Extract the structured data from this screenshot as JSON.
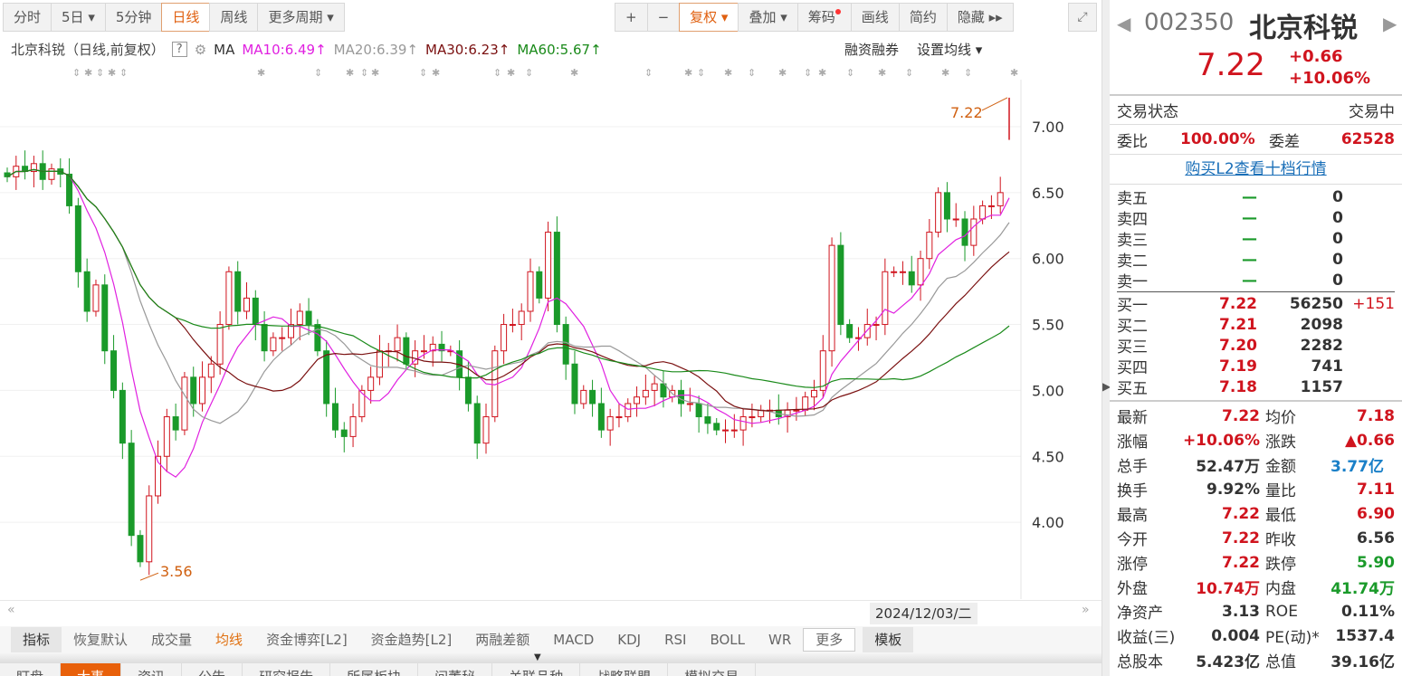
{
  "toolbar": {
    "left": [
      "分时",
      "5日 ▾",
      "5分钟",
      "日线",
      "周线",
      "更多周期 ▾"
    ],
    "active": "日线",
    "right": [
      "+",
      "−",
      "复权 ▾",
      "叠加 ▾",
      "筹码",
      "画线",
      "简约",
      "隐藏 ▸▸"
    ],
    "fullscreen_icon": "expand-icon"
  },
  "ma_header": {
    "title": "北京科锐（日线,前复权）",
    "help": "?",
    "ma": "MA",
    "ma10": "MA10:6.49",
    "ma20": "MA20:6.39",
    "ma30": "MA30:6.23",
    "ma60": "MA60:5.67",
    "arrow": "↑",
    "margin": "融资融券",
    "set_ma": "设置均线 ▾"
  },
  "colors": {
    "up": "#d0141e",
    "down": "#1a9a2a",
    "ma10": "#e020e0",
    "ma20": "#999999",
    "ma30": "#7a1010",
    "ma60": "#1a8a1a",
    "accent": "#e8600a"
  },
  "chart_data": {
    "type": "candlestick",
    "ylim": [
      3.5,
      7.35
    ],
    "yticks": [
      "7.00",
      "6.50",
      "6.00",
      "5.50",
      "5.00",
      "4.50",
      "4.00"
    ],
    "closes": [
      6.62,
      6.7,
      6.66,
      6.72,
      6.6,
      6.68,
      6.64,
      6.4,
      5.9,
      5.6,
      5.8,
      5.3,
      5.0,
      4.6,
      3.9,
      3.7,
      4.2,
      4.5,
      4.8,
      4.7,
      5.1,
      4.9,
      5.1,
      5.2,
      5.5,
      5.9,
      5.6,
      5.7,
      5.5,
      5.3,
      5.4,
      5.4,
      5.5,
      5.6,
      5.5,
      5.3,
      4.9,
      4.7,
      4.65,
      4.8,
      5.0,
      5.1,
      5.3,
      5.3,
      5.4,
      5.2,
      5.3,
      5.3,
      5.35,
      5.3,
      5.3,
      5.1,
      4.9,
      4.6,
      4.8,
      5.3,
      5.5,
      5.5,
      5.6,
      5.9,
      5.7,
      6.2,
      5.5,
      5.2,
      4.9,
      5.0,
      4.9,
      4.7,
      4.8,
      4.8,
      4.9,
      4.95,
      5.0,
      5.05,
      4.95,
      5.0,
      4.9,
      4.9,
      4.8,
      4.75,
      4.7,
      4.7,
      4.7,
      4.8,
      4.8,
      4.85,
      4.85,
      4.8,
      4.85,
      4.85,
      4.95,
      5.0,
      5.3,
      6.1,
      5.5,
      5.4,
      5.4,
      5.5,
      5.5,
      5.9,
      5.9,
      5.9,
      5.8,
      6.0,
      6.2,
      6.5,
      6.3,
      6.3,
      6.1,
      6.3,
      6.4,
      6.4,
      6.5,
      7.22
    ],
    "last": {
      "open": 7.22,
      "high": 7.22,
      "low": 6.9,
      "close": 7.22
    },
    "high_label": "7.22",
    "low_label": "3.56"
  },
  "date": "2024/12/03/二",
  "indicators": [
    "指标",
    "恢复默认",
    "成交量",
    "均线",
    "资金博弈[L2]",
    "资金趋势[L2]",
    "两融差额",
    "MACD",
    "KDJ",
    "RSI",
    "BOLL",
    "WR",
    "更多",
    "模板"
  ],
  "bottom_tabs": [
    "盯盘",
    "大事",
    "资讯",
    "公告",
    "研究报告",
    "所属板块",
    "问董秘",
    "关联品种",
    "战略联盟",
    "模拟交易"
  ],
  "quote": {
    "code": "002350",
    "name": "北京科锐",
    "price": "7.22",
    "change": "+0.66",
    "pct": "+10.06%",
    "status_label": "交易状态",
    "status": "交易中",
    "wb_label": "委比",
    "wb": "100.00%",
    "wc_label": "委差",
    "wc": "62528",
    "l2_link": "购买L2查看十档行情",
    "asks": [
      {
        "l": "卖五",
        "p": "—",
        "v": "0"
      },
      {
        "l": "卖四",
        "p": "—",
        "v": "0"
      },
      {
        "l": "卖三",
        "p": "—",
        "v": "0"
      },
      {
        "l": "卖二",
        "p": "—",
        "v": "0"
      },
      {
        "l": "卖一",
        "p": "—",
        "v": "0"
      }
    ],
    "bids": [
      {
        "l": "买一",
        "p": "7.22",
        "v": "56250",
        "d": "+151"
      },
      {
        "l": "买二",
        "p": "7.21",
        "v": "2098",
        "d": ""
      },
      {
        "l": "买三",
        "p": "7.20",
        "v": "2282",
        "d": ""
      },
      {
        "l": "买四",
        "p": "7.19",
        "v": "741",
        "d": ""
      },
      {
        "l": "买五",
        "p": "7.18",
        "v": "1157",
        "d": ""
      }
    ],
    "stats": [
      [
        "最新",
        "7.22",
        "red",
        "均价",
        "7.18",
        "red"
      ],
      [
        "涨幅",
        "+10.06%",
        "red",
        "涨跌",
        "▲0.66",
        "red"
      ],
      [
        "总手",
        "52.47万",
        "blk",
        "金额",
        "3.77亿",
        "blue"
      ],
      [
        "换手",
        "9.92%",
        "blk",
        "量比",
        "7.11",
        "red"
      ],
      [
        "最高",
        "7.22",
        "red",
        "最低",
        "6.90",
        "red"
      ],
      [
        "今开",
        "7.22",
        "red",
        "昨收",
        "6.56",
        "blk"
      ],
      [
        "涨停",
        "7.22",
        "red",
        "跌停",
        "5.90",
        "green"
      ],
      [
        "外盘",
        "10.74万",
        "red",
        "内盘",
        "41.74万",
        "green"
      ],
      [
        "净资产",
        "3.13",
        "blk",
        "ROE",
        "0.11%",
        "blk"
      ],
      [
        "收益(三)",
        "0.004",
        "blk",
        "PE(动)*",
        "1537.4",
        "blk"
      ],
      [
        "总股本",
        "5.423亿",
        "blk",
        "总值",
        "39.16亿",
        "blk"
      ]
    ]
  }
}
